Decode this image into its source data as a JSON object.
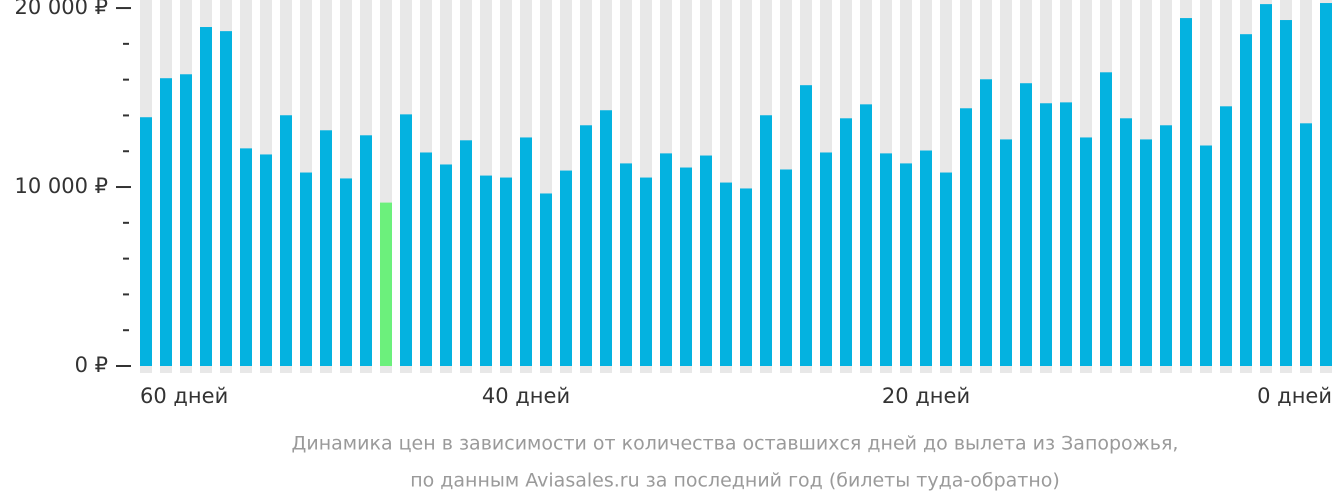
{
  "chart_data": {
    "type": "bar",
    "categories": [
      "60 дней",
      null,
      null,
      null,
      null,
      null,
      null,
      null,
      null,
      null,
      null,
      null,
      null,
      null,
      null,
      null,
      null,
      null,
      null,
      "40 дней",
      null,
      null,
      null,
      null,
      null,
      null,
      null,
      null,
      null,
      null,
      null,
      null,
      null,
      null,
      null,
      null,
      null,
      null,
      null,
      "20 дней",
      null,
      null,
      null,
      null,
      null,
      null,
      null,
      null,
      null,
      null,
      null,
      null,
      null,
      null,
      null,
      null,
      null,
      null,
      null,
      "0 дней"
    ],
    "values": [
      13900,
      16080,
      16300,
      18940,
      18710,
      12160,
      11820,
      14010,
      10810,
      13170,
      10480,
      12890,
      9130,
      14060,
      11930,
      11260,
      12610,
      10640,
      10530,
      12770,
      9640,
      10920,
      13450,
      14290,
      11320,
      10530,
      11880,
      11090,
      11760,
      10250,
      9920,
      14010,
      10980,
      15690,
      11930,
      13840,
      14620,
      11880,
      11320,
      12040,
      10810,
      14400,
      16020,
      12660,
      15800,
      14680,
      14730,
      12770,
      16410,
      13840,
      12660,
      13450,
      19440,
      12320,
      14510,
      18540,
      20220,
      19330,
      13560,
      20280
    ],
    "color": "#04b2e0",
    "highlight": {
      "index": 12,
      "color": "#6cf07c"
    },
    "background_color": "#e8e8e8",
    "ylim": [
      0,
      20450
    ],
    "yticks": [
      {
        "value": 0,
        "label": "0 ₽"
      },
      {
        "value": 10000,
        "label": "10 000 ₽"
      },
      {
        "value": 20000,
        "label": "20 000 ₽"
      }
    ],
    "minor_yticks": [
      2000,
      4000,
      6000,
      8000,
      12000,
      14000,
      16000,
      18000
    ],
    "caption": [
      "Динамика цен в зависимости от количества оставшихся дней до вылета из Запорожья,",
      "по данным Aviasales.ru за последний год (билеты туда-обратно)"
    ]
  }
}
